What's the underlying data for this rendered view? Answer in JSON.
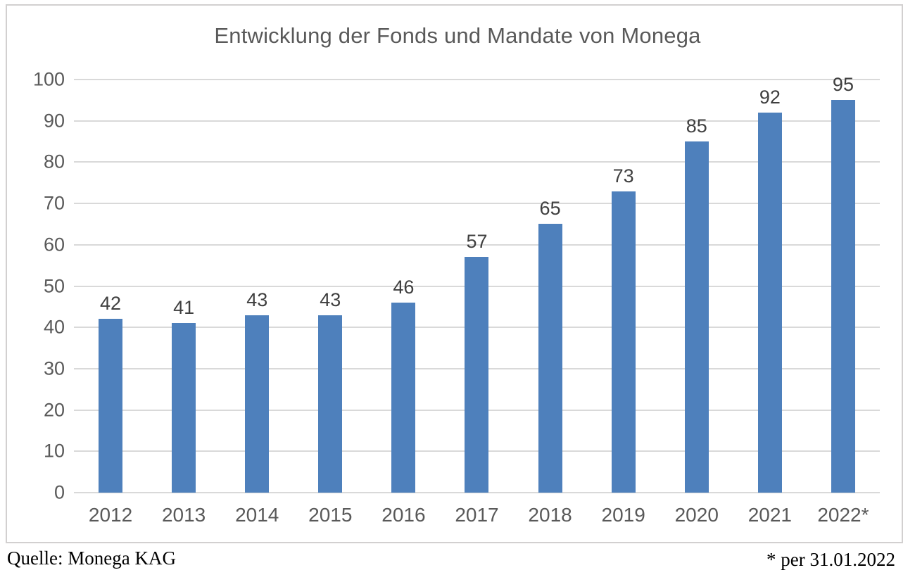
{
  "chart_data": {
    "type": "bar",
    "title": "Entwicklung der Fonds und Mandate von Monega",
    "categories": [
      "2012",
      "2013",
      "2014",
      "2015",
      "2016",
      "2017",
      "2018",
      "2019",
      "2020",
      "2021",
      "2022*"
    ],
    "values": [
      42,
      41,
      43,
      43,
      46,
      57,
      65,
      73,
      85,
      92,
      95
    ],
    "xlabel": "",
    "ylabel": "",
    "ylim": [
      0,
      100
    ],
    "yticks": [
      0,
      10,
      20,
      30,
      40,
      50,
      60,
      70,
      80,
      90,
      100
    ],
    "grid": true,
    "legend_position": "none",
    "data_labels": true,
    "bar_color": "#4e80bc"
  },
  "footer": {
    "source": "Quelle: Monega KAG",
    "footnote": "* per 31.01.2022"
  },
  "colors": {
    "bar": "#4e80bc",
    "gridline": "#d9d9d9",
    "frame_border": "#d2d0d0",
    "title_text": "#595959",
    "axis_text": "#595959",
    "data_label_text": "#3f3f3f",
    "footer_text": "#000000"
  }
}
